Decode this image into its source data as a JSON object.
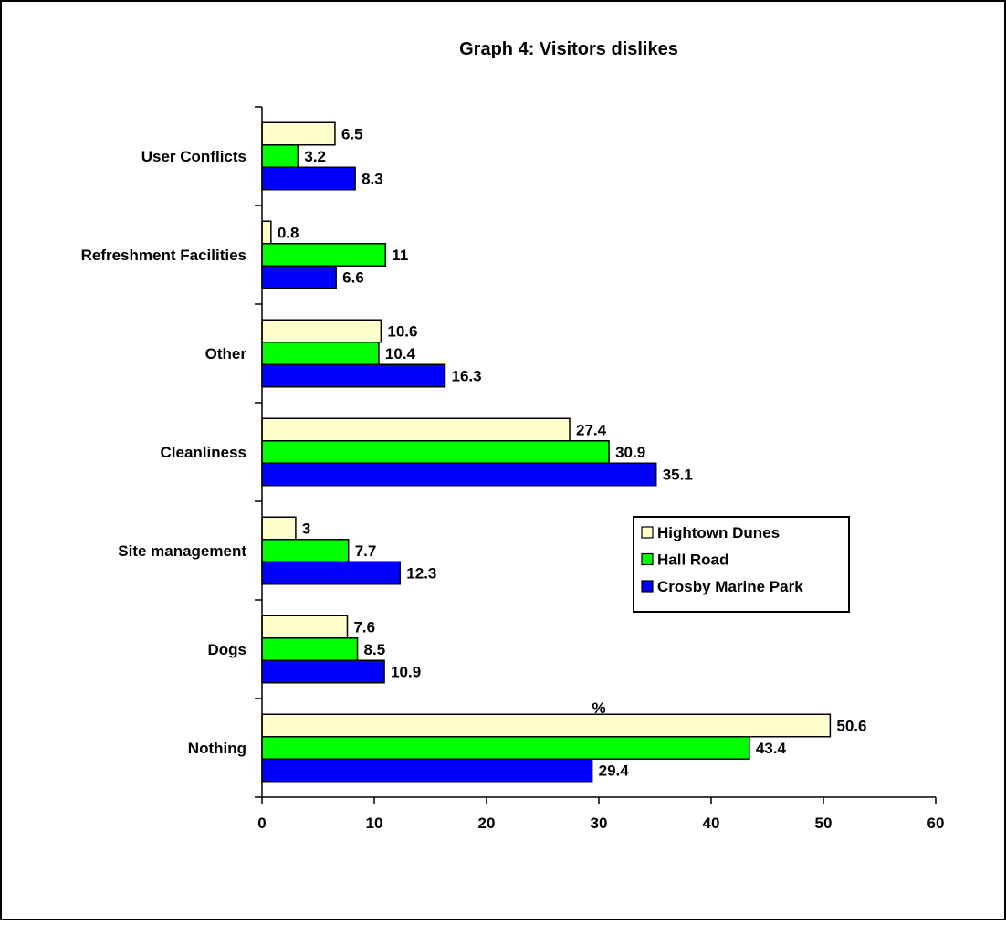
{
  "chart_data": {
    "type": "bar",
    "orientation": "horizontal",
    "title": "Graph 4: Visitors dislikes",
    "xlabel": "%",
    "ylabel": "",
    "xlim": [
      0,
      60
    ],
    "x_ticks": [
      0,
      10,
      20,
      30,
      40,
      50,
      60
    ],
    "grid": false,
    "legend_position": "right-middle",
    "categories": [
      "User Conflicts",
      "Refreshment Facilities",
      "Other",
      "Cleanliness",
      "Site management",
      "Dogs",
      "Nothing"
    ],
    "series": [
      {
        "name": "Hightown Dunes",
        "color": "#FFFFCC",
        "values": [
          6.5,
          0.8,
          10.6,
          27.4,
          3,
          7.6,
          50.6
        ]
      },
      {
        "name": "Hall Road",
        "color": "#00FF00",
        "values": [
          3.2,
          11,
          10.4,
          30.9,
          7.7,
          8.5,
          43.4
        ]
      },
      {
        "name": "Crosby Marine Park",
        "color": "#0000FF",
        "values": [
          8.3,
          6.6,
          16.3,
          35.1,
          12.3,
          10.9,
          29.4
        ]
      }
    ],
    "data_labels": [
      [
        "6.5",
        "3.2",
        "8.3"
      ],
      [
        "0.8",
        "11",
        "6.6"
      ],
      [
        "10.6",
        "10.4",
        "16.3"
      ],
      [
        "27.4",
        "30.9",
        "35.1"
      ],
      [
        "3",
        "7.7",
        "12.3"
      ],
      [
        "7.6",
        "8.5",
        "10.9"
      ],
      [
        "50.6",
        "43.4",
        "29.4"
      ]
    ]
  }
}
